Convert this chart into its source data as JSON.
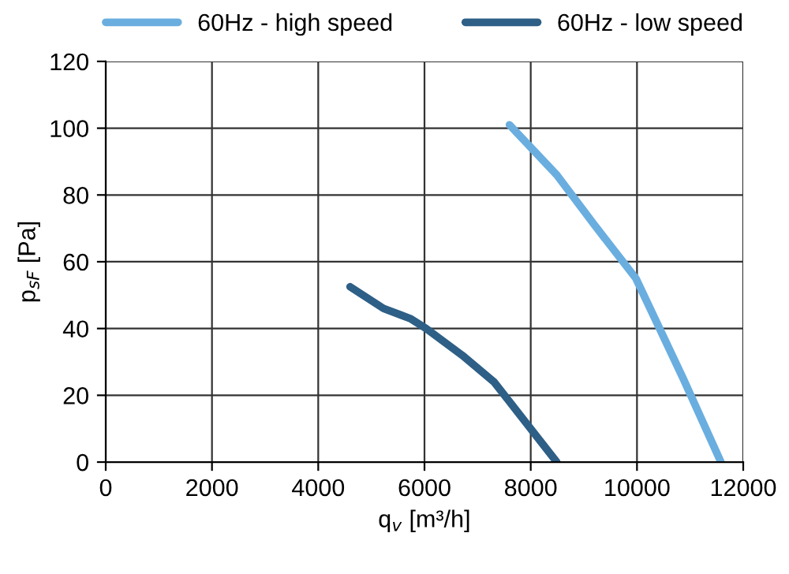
{
  "chart_data": {
    "type": "line",
    "xlabel": "q$_{v}$ [m³/h]",
    "ylabel": "p$_{sF}$ [Pa]",
    "xlim": [
      0,
      12000
    ],
    "ylim": [
      0,
      120
    ],
    "xticks": [
      0,
      2000,
      4000,
      6000,
      8000,
      10000,
      12000
    ],
    "yticks": [
      0,
      20,
      40,
      60,
      80,
      100,
      120
    ],
    "grid": true,
    "legend": "top",
    "marker": "none",
    "series": [
      {
        "name": "60Hz - high speed",
        "color": "#6aaee0",
        "x": [
          7600,
          8490,
          9200,
          9980,
          10870,
          11580
        ],
        "values": [
          101,
          86,
          71,
          55,
          25,
          0
        ]
      },
      {
        "name": "60Hz - low speed",
        "color": "#2e5f86",
        "x": [
          4600,
          5230,
          5730,
          6030,
          6710,
          7310,
          7900,
          8490
        ],
        "values": [
          52.5,
          46,
          43,
          40,
          32,
          24,
          12,
          0
        ]
      }
    ]
  }
}
